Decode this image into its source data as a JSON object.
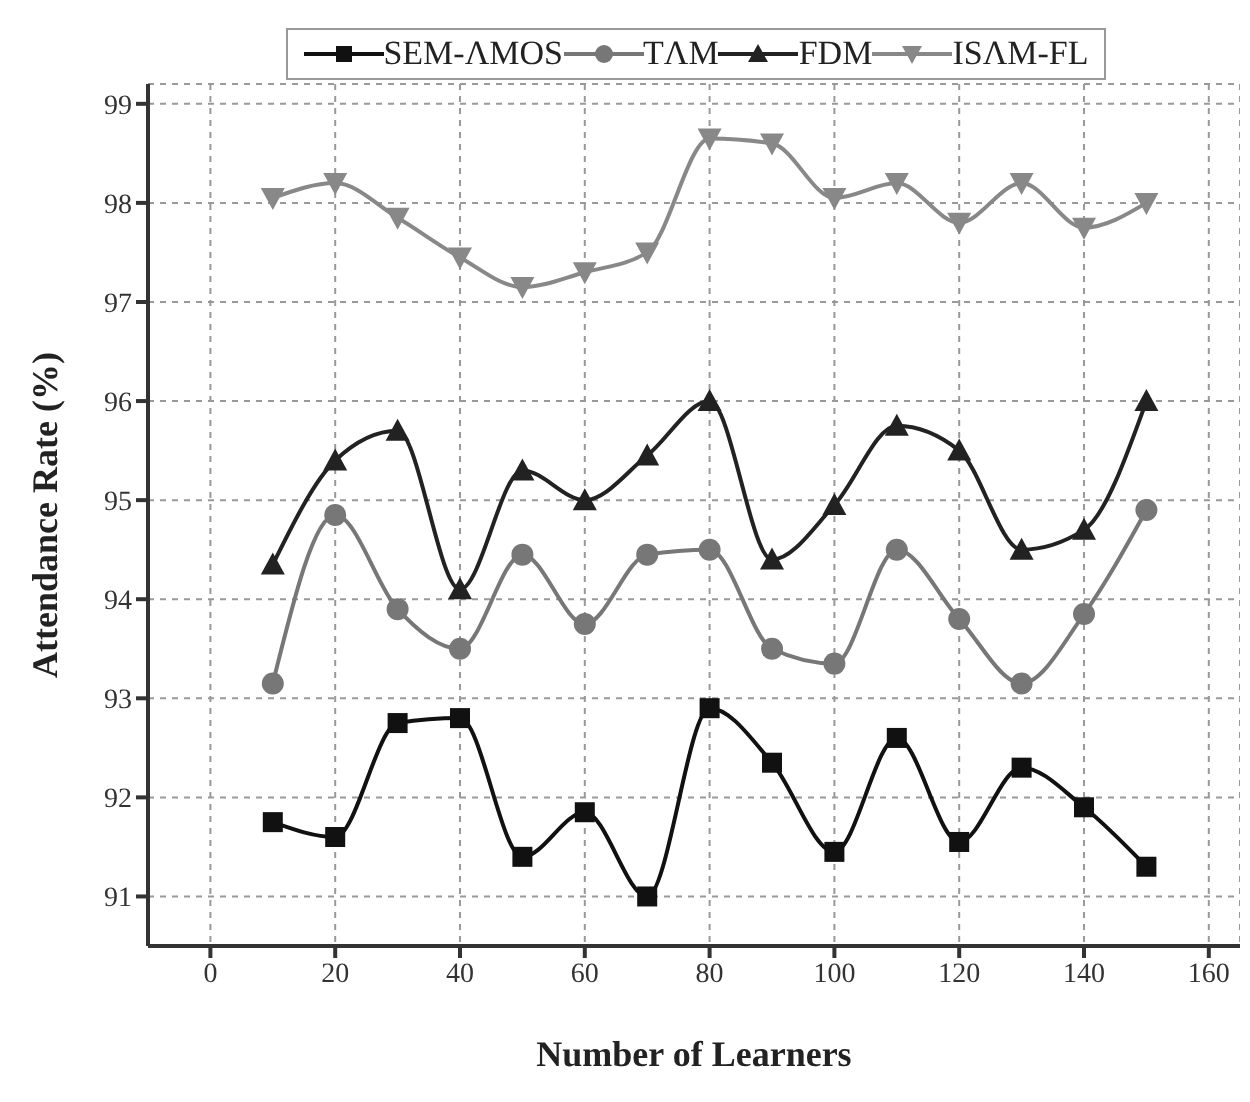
{
  "chart_data": {
    "type": "line",
    "xlabel": "Number of Learners",
    "ylabel": "Attendance Rate (%)",
    "x": [
      10,
      20,
      30,
      40,
      50,
      60,
      70,
      80,
      90,
      100,
      110,
      120,
      130,
      140,
      150
    ],
    "series": [
      {
        "name": "SEM-ΛMOS",
        "color": "#111111",
        "marker": "square",
        "values": [
          91.75,
          91.6,
          92.75,
          92.8,
          91.4,
          91.85,
          91.0,
          92.9,
          92.35,
          91.45,
          92.6,
          91.55,
          92.3,
          91.9,
          91.3
        ]
      },
      {
        "name": "TΛM",
        "color": "#777777",
        "marker": "circle",
        "values": [
          93.15,
          94.85,
          93.9,
          93.5,
          94.45,
          93.75,
          94.45,
          94.5,
          93.5,
          93.35,
          94.5,
          93.8,
          93.15,
          93.85,
          94.9
        ]
      },
      {
        "name": "FDM",
        "color": "#222222",
        "marker": "triangle",
        "values": [
          94.35,
          95.4,
          95.7,
          94.1,
          95.3,
          95.0,
          95.45,
          96.0,
          94.4,
          94.95,
          95.75,
          95.5,
          94.5,
          94.7,
          96.0
        ]
      },
      {
        "name": "ISΛM-FL",
        "color": "#888888",
        "marker": "triangle-down",
        "values": [
          98.05,
          98.2,
          97.85,
          97.45,
          97.15,
          97.3,
          97.5,
          98.65,
          98.6,
          98.05,
          98.2,
          97.8,
          98.2,
          97.75,
          98.0
        ]
      }
    ],
    "xlim": [
      -10,
      165
    ],
    "xticks": [
      0,
      20,
      40,
      60,
      80,
      100,
      120,
      140,
      160
    ],
    "ylim": [
      90.5,
      99.2
    ],
    "yticks": [
      91,
      92,
      93,
      94,
      95,
      96,
      97,
      98,
      99
    ],
    "grid": true,
    "legend": "top",
    "line_style": "solid"
  }
}
